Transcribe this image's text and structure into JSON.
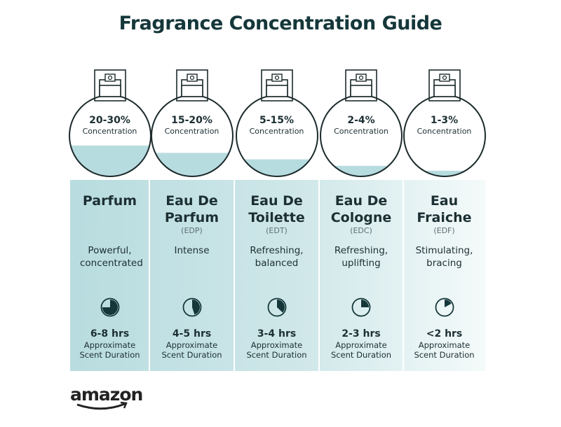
{
  "title": "Fragrance Concentration Guide",
  "colors": {
    "liquid": "#b7dcdf",
    "dark": "#15373a",
    "panel_start": "#b8dcdf",
    "panel_end": "#f4fafa"
  },
  "items": [
    {
      "percent": "20-30%",
      "concentration_label": "Concentration",
      "fill_level": 0.38,
      "name": "Parfum",
      "abbr": "",
      "description": "Powerful, concentrated",
      "clock_fraction": 0.75,
      "duration": "6-8 hrs",
      "duration_label": "Approximate Scent Duration"
    },
    {
      "percent": "15-20%",
      "concentration_label": "Concentration",
      "fill_level": 0.29,
      "name": "Eau De Parfum",
      "abbr": "(EDP)",
      "description": "Intense",
      "clock_fraction": 0.45,
      "duration": "4-5 hrs",
      "duration_label": "Approximate Scent Duration"
    },
    {
      "percent": "5-15%",
      "concentration_label": "Concentration",
      "fill_level": 0.21,
      "name": "Eau De Toilette",
      "abbr": "(EDT)",
      "description": "Refreshing, balanced",
      "clock_fraction": 0.37,
      "duration": "3-4 hrs",
      "duration_label": "Approximate Scent Duration"
    },
    {
      "percent": "2-4%",
      "concentration_label": "Concentration",
      "fill_level": 0.13,
      "name": "Eau De Cologne",
      "abbr": "(EDC)",
      "description": "Refreshing, uplifting",
      "clock_fraction": 0.25,
      "duration": "2-3 hrs",
      "duration_label": "Approximate Scent Duration"
    },
    {
      "percent": "1-3%",
      "concentration_label": "Concentration",
      "fill_level": 0.07,
      "name": "Eau Fraiche",
      "abbr": "(EDF)",
      "description": "Stimulating, bracing",
      "clock_fraction": 0.17,
      "duration": "<2 hrs",
      "duration_label": "Approximate Scent Duration"
    }
  ],
  "logo": "amazon"
}
